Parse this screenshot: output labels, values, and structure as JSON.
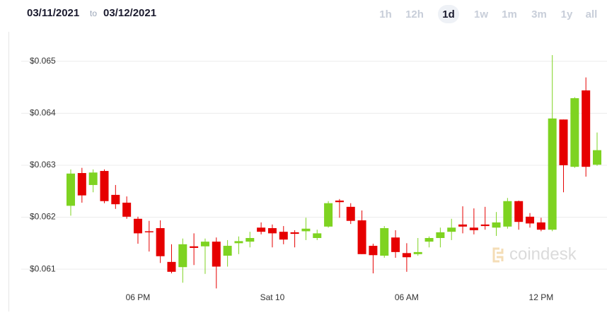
{
  "header": {
    "from": "03/11/2021",
    "separator": "to",
    "to": "03/12/2021"
  },
  "range_buttons": [
    "1h",
    "12h",
    "1d",
    "1w",
    "1m",
    "3m",
    "1y",
    "all"
  ],
  "selected_range": 2,
  "chart_data": {
    "type": "candlestick",
    "watermark": "coindesk",
    "categories": [
      null,
      null,
      null,
      null,
      null,
      null,
      "06 PM",
      null,
      null,
      null,
      null,
      null,
      null,
      null,
      null,
      null,
      null,
      null,
      "Sat 10",
      null,
      null,
      null,
      null,
      null,
      null,
      null,
      null,
      null,
      null,
      null,
      "06 AM",
      null,
      null,
      null,
      null,
      null,
      null,
      null,
      null,
      null,
      null,
      null,
      "12 PM",
      null,
      null,
      null,
      null,
      null
    ],
    "open": [
      0.06222,
      0.06285,
      0.06262,
      0.06289,
      0.06243,
      0.06228,
      0.06197,
      0.06173,
      0.06179,
      0.06114,
      0.06104,
      0.06144,
      0.06144,
      0.06153,
      0.06126,
      0.0615,
      0.06153,
      0.0618,
      0.06179,
      0.06172,
      0.06171,
      0.06173,
      0.0616,
      0.06182,
      0.06232,
      0.0622,
      0.06194,
      0.06145,
      0.06126,
      0.06161,
      0.06131,
      0.06129,
      0.06153,
      0.0616,
      0.06172,
      0.06186,
      0.0618,
      0.06186,
      0.0618,
      0.06182,
      0.06231,
      0.06201,
      0.0619,
      0.06176,
      0.06388,
      0.06297,
      0.06444,
      0.06301
    ],
    "high": [
      0.06292,
      0.06295,
      0.06292,
      0.06292,
      0.06262,
      0.0624,
      0.06201,
      0.06193,
      0.06194,
      0.06148,
      0.06159,
      0.06169,
      0.06159,
      0.06161,
      0.06156,
      0.06163,
      0.06172,
      0.0619,
      0.06186,
      0.06183,
      0.06175,
      0.06199,
      0.06176,
      0.06231,
      0.06235,
      0.06227,
      0.06213,
      0.06149,
      0.06183,
      0.06175,
      0.0615,
      0.0616,
      0.06163,
      0.0618,
      0.06197,
      0.06221,
      0.06217,
      0.0622,
      0.0621,
      0.06237,
      0.06232,
      0.06208,
      0.06199,
      0.06512,
      0.06388,
      0.06431,
      0.06469,
      0.06363
    ],
    "low": [
      0.06203,
      0.06228,
      0.06248,
      0.06227,
      0.06216,
      0.06197,
      0.06149,
      0.06134,
      0.06112,
      0.06092,
      0.06074,
      0.06108,
      0.06091,
      0.06063,
      0.06105,
      0.06129,
      0.06142,
      0.06167,
      0.06142,
      0.06148,
      0.06142,
      0.06156,
      0.06156,
      0.0618,
      0.06199,
      0.06187,
      0.06129,
      0.06092,
      0.06122,
      0.06122,
      0.06095,
      0.06126,
      0.06142,
      0.06142,
      0.06156,
      0.06169,
      0.06167,
      0.06176,
      0.06164,
      0.06178,
      0.06176,
      0.0618,
      0.06173,
      0.06173,
      0.06248,
      0.06295,
      0.06278,
      0.06299
    ],
    "close": [
      0.06284,
      0.06242,
      0.06286,
      0.06231,
      0.06225,
      0.06201,
      0.06169,
      0.06171,
      0.06125,
      0.06095,
      0.06148,
      0.06141,
      0.06153,
      0.06105,
      0.06145,
      0.06154,
      0.0616,
      0.06172,
      0.06169,
      0.06157,
      0.06168,
      0.06178,
      0.06169,
      0.06227,
      0.06229,
      0.06193,
      0.06129,
      0.06127,
      0.06179,
      0.06133,
      0.06123,
      0.06133,
      0.0616,
      0.06171,
      0.0618,
      0.06182,
      0.06175,
      0.06183,
      0.0619,
      0.06231,
      0.06191,
      0.06188,
      0.06176,
      0.0639,
      0.063,
      0.06429,
      0.06297,
      0.06329
    ],
    "up_color": "#7ed321",
    "down_color": "#e60000",
    "ylim": [
      0.06054,
      0.0655
    ],
    "yticks": [
      {
        "value": 0.061,
        "label": "$0.061"
      },
      {
        "value": 0.062,
        "label": "$0.062"
      },
      {
        "value": 0.063,
        "label": "$0.063"
      },
      {
        "value": 0.064,
        "label": "$0.064"
      },
      {
        "value": 0.065,
        "label": "$0.065"
      }
    ],
    "grid": true
  }
}
